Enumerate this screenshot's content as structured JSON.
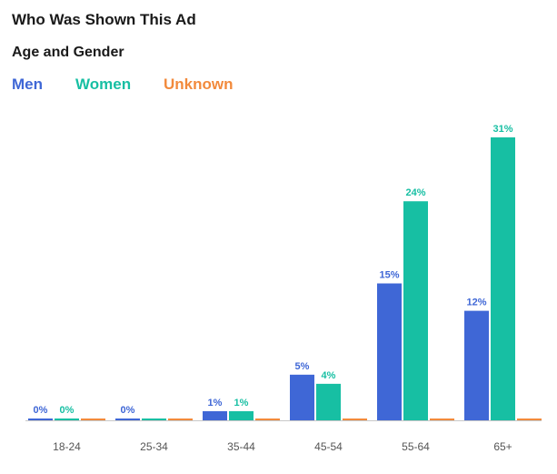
{
  "chart_data": {
    "type": "bar",
    "title": "Who Was Shown This Ad",
    "subtitle": "Age and Gender",
    "categories": [
      "18-24",
      "25-34",
      "35-44",
      "45-54",
      "55-64",
      "65+"
    ],
    "series": [
      {
        "name": "Men",
        "color": "#3f67d6",
        "values": [
          0,
          0,
          1,
          5,
          15,
          12
        ],
        "labels": [
          "0%",
          "0%",
          "1%",
          "5%",
          "15%",
          "12%"
        ]
      },
      {
        "name": "Women",
        "color": "#17bfa3",
        "values": [
          0,
          0,
          1,
          4,
          24,
          31
        ],
        "labels": [
          "0%",
          "",
          "1%",
          "4%",
          "24%",
          "31%"
        ]
      },
      {
        "name": "Unknown",
        "color": "#f28a3c",
        "values": [
          0,
          0,
          0,
          0,
          0,
          0
        ],
        "labels": [
          "",
          "",
          "",
          "",
          "",
          ""
        ]
      }
    ],
    "ylim": [
      0,
      31
    ],
    "xlabel": "",
    "ylabel": "",
    "grid": false,
    "legend": "top-left"
  }
}
